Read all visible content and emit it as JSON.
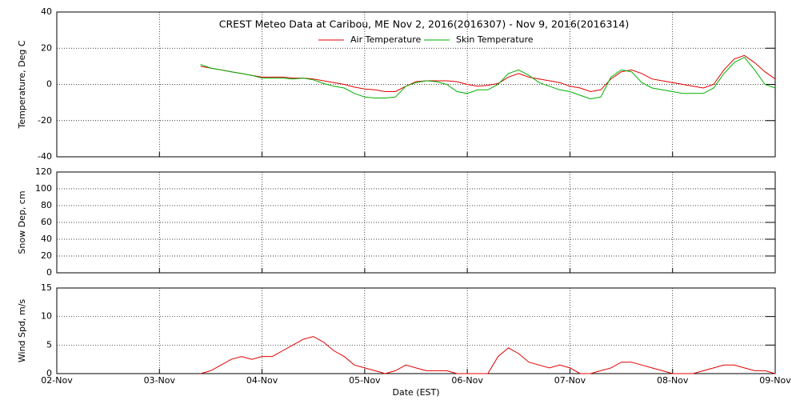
{
  "chart_data": [
    {
      "type": "line",
      "title": "CREST Meteo Data at Caribou, ME   Nov  2, 2016(2016307) - Nov  9, 2016(2016314)",
      "ylabel": "Temperature, Deg C",
      "xlim": [
        2,
        9
      ],
      "xticks": [
        2,
        3,
        4,
        5,
        6,
        7,
        8,
        9
      ],
      "ylim": [
        -40,
        40
      ],
      "yticks": [
        -40,
        -20,
        0,
        20,
        40
      ],
      "grid": true,
      "legend": "top",
      "x": [
        3.4,
        3.5,
        3.6,
        3.7,
        3.8,
        3.9,
        4.0,
        4.1,
        4.2,
        4.3,
        4.4,
        4.5,
        4.6,
        4.7,
        4.8,
        4.9,
        5.0,
        5.1,
        5.2,
        5.3,
        5.4,
        5.5,
        5.6,
        5.7,
        5.8,
        5.9,
        6.0,
        6.1,
        6.2,
        6.3,
        6.4,
        6.5,
        6.6,
        6.7,
        6.8,
        6.9,
        7.0,
        7.1,
        7.2,
        7.3,
        7.4,
        7.5,
        7.6,
        7.7,
        7.8,
        7.9,
        8.0,
        8.1,
        8.2,
        8.3,
        8.4,
        8.5,
        8.6,
        8.7,
        8.8,
        8.9,
        9.0
      ],
      "series": [
        {
          "name": "Air Temperature",
          "color": "#e00000",
          "values": [
            10,
            9,
            8,
            7,
            6,
            5,
            4,
            4,
            4,
            3.5,
            3.5,
            3,
            2,
            1,
            0,
            -1.5,
            -2.5,
            -3,
            -4,
            -4,
            -1,
            1.5,
            2,
            2,
            2,
            1.5,
            0,
            -1,
            -0.5,
            0.5,
            4,
            6,
            4,
            3,
            2,
            1,
            -1,
            -2,
            -4,
            -3,
            3,
            7,
            8,
            6,
            3,
            2,
            1,
            0,
            -1,
            -2,
            0,
            8,
            14,
            16,
            12,
            7,
            3
          ]
        },
        {
          "name": "Skin Temperature",
          "color": "#00b000",
          "values": [
            11,
            9,
            8,
            7,
            6,
            5,
            3.5,
            3.5,
            3.5,
            3,
            3.5,
            2.5,
            0.5,
            -1,
            -2,
            -5,
            -7,
            -7.5,
            -7.5,
            -7,
            -1,
            1,
            2,
            1.5,
            0,
            -4,
            -5,
            -3,
            -3,
            0,
            6,
            8,
            5,
            1,
            -1,
            -3,
            -4,
            -6,
            -8,
            -7,
            4,
            8,
            7,
            1,
            -2,
            -3,
            -4,
            -5,
            -5,
            -5,
            -2,
            6,
            12,
            15,
            8,
            0,
            -2
          ]
        }
      ]
    },
    {
      "type": "line",
      "ylabel": "Snow Dep, cm",
      "xlim": [
        2,
        9
      ],
      "xticks": [
        2,
        3,
        4,
        5,
        6,
        7,
        8,
        9
      ],
      "ylim": [
        0,
        120
      ],
      "yticks": [
        0,
        20,
        40,
        60,
        80,
        100,
        120
      ],
      "grid": true,
      "series": []
    },
    {
      "type": "line",
      "ylabel": "Wind Spd, m/s",
      "xlabel": "Date (EST)",
      "xlim": [
        2,
        9
      ],
      "xticks": [
        {
          "value": 2,
          "label": "02-Nov"
        },
        {
          "value": 3,
          "label": "03-Nov"
        },
        {
          "value": 4,
          "label": "04-Nov"
        },
        {
          "value": 5,
          "label": "05-Nov"
        },
        {
          "value": 6,
          "label": "06-Nov"
        },
        {
          "value": 7,
          "label": "07-Nov"
        },
        {
          "value": 8,
          "label": "08-Nov"
        },
        {
          "value": 9,
          "label": "09-Nov"
        }
      ],
      "ylim": [
        0,
        15
      ],
      "yticks": [
        0,
        5,
        10,
        15
      ],
      "grid": true,
      "x": [
        3.4,
        3.5,
        3.6,
        3.7,
        3.8,
        3.9,
        4.0,
        4.1,
        4.2,
        4.3,
        4.4,
        4.5,
        4.6,
        4.7,
        4.8,
        4.9,
        5.0,
        5.1,
        5.2,
        5.3,
        5.4,
        5.5,
        5.6,
        5.7,
        5.8,
        5.9,
        6.0,
        6.1,
        6.2,
        6.3,
        6.4,
        6.5,
        6.6,
        6.7,
        6.8,
        6.9,
        7.0,
        7.1,
        7.2,
        7.3,
        7.4,
        7.5,
        7.6,
        7.7,
        7.8,
        7.9,
        8.0,
        8.1,
        8.2,
        8.3,
        8.4,
        8.5,
        8.6,
        8.7,
        8.8,
        8.9,
        9.0
      ],
      "series": [
        {
          "color": "#e00000",
          "values": [
            0,
            0.5,
            1.5,
            2.5,
            3,
            2.5,
            3,
            3,
            4,
            5,
            6,
            6.5,
            5.5,
            4,
            3,
            1.5,
            1,
            0.5,
            0,
            0.5,
            1.5,
            1,
            0.5,
            0.5,
            0.5,
            0,
            0,
            0,
            0,
            3,
            4.5,
            3.5,
            2,
            1.5,
            1,
            1.5,
            1,
            0,
            0,
            0.5,
            1,
            2,
            2,
            1.5,
            1,
            0.5,
            0,
            0,
            0,
            0.5,
            1,
            1.5,
            1.5,
            1,
            0.5,
            0.5,
            0
          ]
        }
      ]
    }
  ]
}
